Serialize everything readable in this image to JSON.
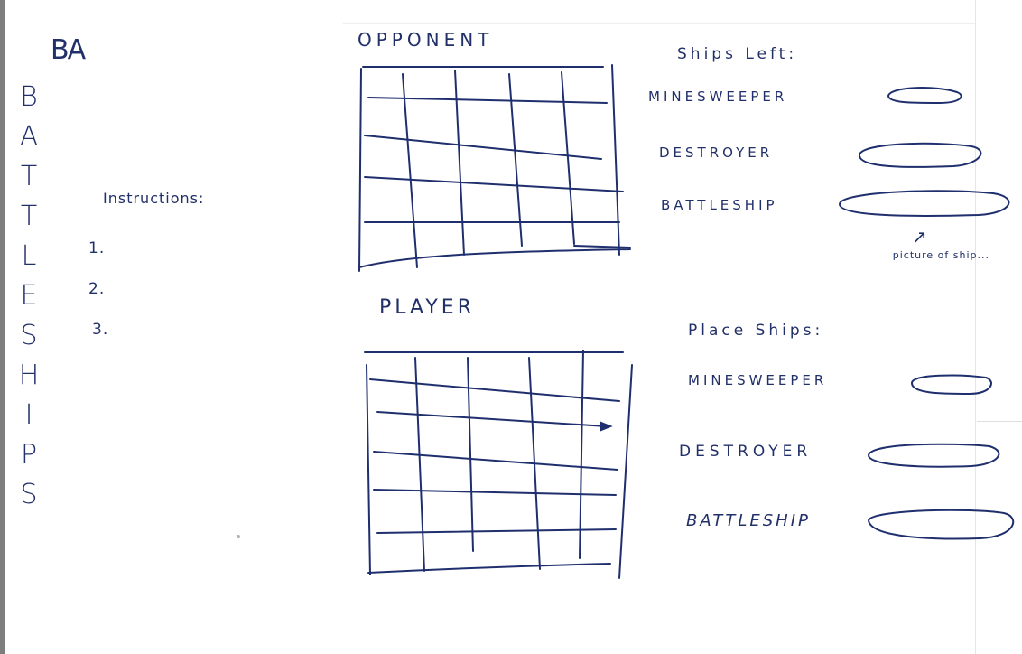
{
  "app": {
    "logo": "BA",
    "title_letters": [
      "B",
      "A",
      "T",
      "T",
      "L",
      "E",
      "S",
      "H",
      "I",
      "P",
      "S"
    ]
  },
  "instructions": {
    "label": "Instructions:",
    "items": [
      "1.",
      "2.",
      "3."
    ]
  },
  "boards": {
    "opponent_label": "OPPONENT",
    "player_label": "PLAYER"
  },
  "ships_left": {
    "label": "Ships Left:",
    "ships": [
      "MINESWEEPER",
      "DESTROYER",
      "BATTLESHIP"
    ],
    "note": "picture of ship..."
  },
  "place_ships": {
    "label": "Place Ships:",
    "ships": [
      "MINESWEEPER",
      "DESTROYER",
      "BATTLESHIP"
    ]
  },
  "colors": {
    "ink": "#1f2f6e",
    "paper": "#ffffff"
  }
}
